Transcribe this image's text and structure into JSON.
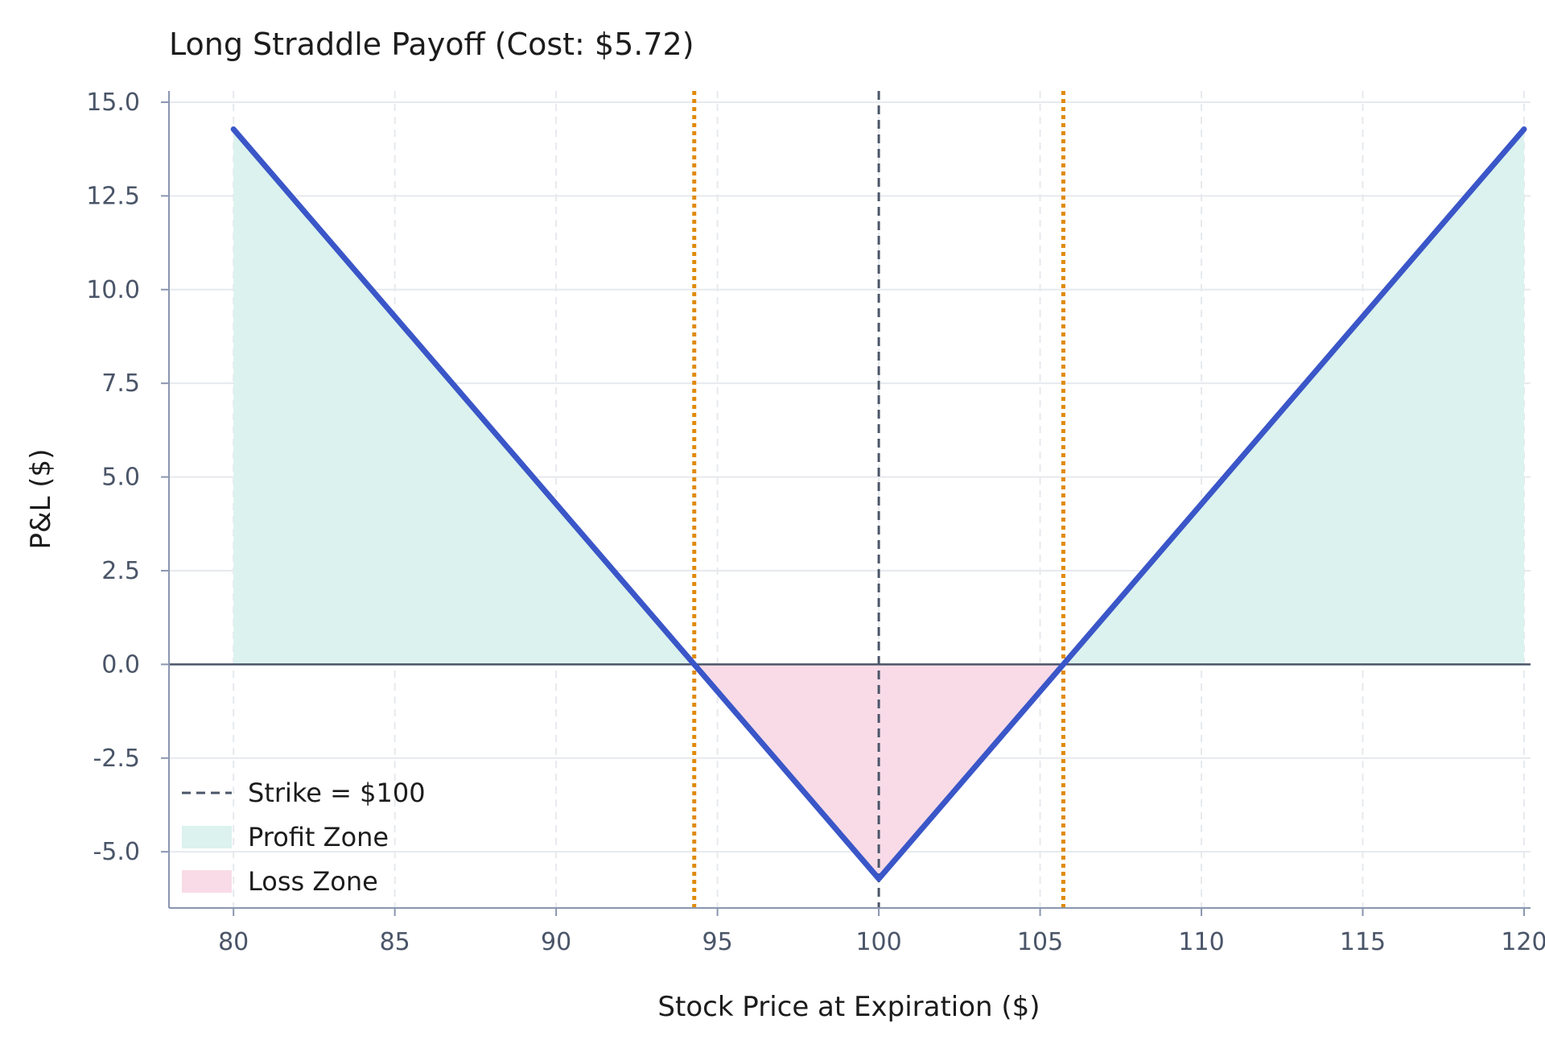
{
  "chart_data": {
    "type": "line",
    "title": "Long Straddle Payoff (Cost: $5.72)",
    "xlabel": "Stock Price at Expiration ($)",
    "ylabel": "P&L ($)",
    "xlim": [
      78,
      120.2
    ],
    "ylim": [
      -6.5,
      15.3
    ],
    "x_ticks": [
      80,
      85,
      90,
      95,
      100,
      105,
      110,
      115,
      120
    ],
    "x_tick_labels": [
      "80",
      "85",
      "90",
      "95",
      "100",
      "105",
      "110",
      "115",
      "120"
    ],
    "y_ticks": [
      15.0,
      12.5,
      10.0,
      7.5,
      5.0,
      2.5,
      0.0,
      -2.5,
      -5.0
    ],
    "y_tick_labels": [
      "15.0",
      "12.5",
      "10.0",
      "7.5",
      "5.0",
      "2.5",
      "0.0",
      "-2.5",
      "-5.0"
    ],
    "grid": true,
    "strike": 100,
    "cost": 5.72,
    "breakevens": [
      94.28,
      105.72
    ],
    "series": [
      {
        "x": [
          80,
          94.28,
          100,
          105.72,
          120
        ],
        "values": [
          14.28,
          0,
          -5.72,
          0,
          14.28
        ]
      }
    ],
    "legend": {
      "placement": "lower-left",
      "entries": [
        {
          "label": "Strike = $100",
          "kind": "dashed-line"
        },
        {
          "label": "Profit Zone",
          "kind": "fill"
        },
        {
          "label": "Loss Zone",
          "kind": "fill"
        }
      ]
    },
    "colors": {
      "payoff": "#3a56c8",
      "profit_fill": "#dbf2ee",
      "loss_fill": "#f8dbe7",
      "breakeven": "#e08a0b",
      "strike": "#4a5568",
      "zero_line": "#4a5568",
      "grid": "#e6e9ee",
      "axis": "#8a96b0"
    }
  }
}
